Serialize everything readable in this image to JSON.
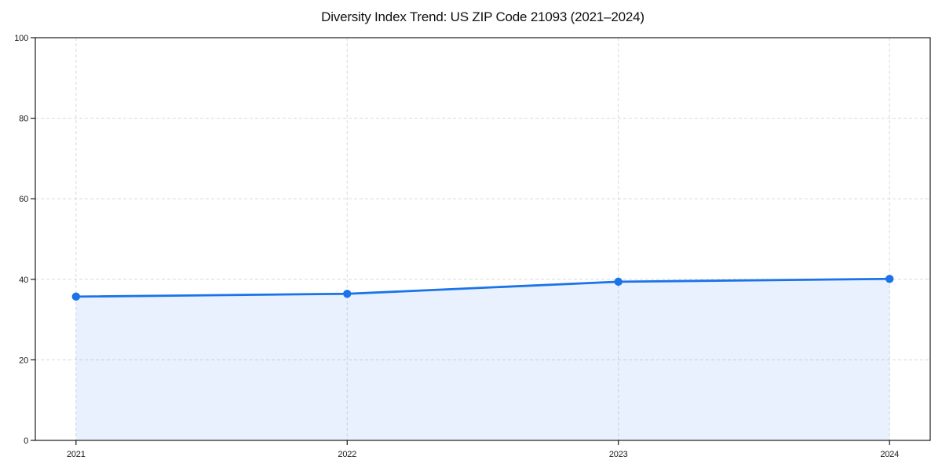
{
  "chart_data": {
    "type": "line",
    "title": "Diversity Index Trend: US ZIP Code 21093 (2021–2024)",
    "x": [
      2021,
      2022,
      2023,
      2024
    ],
    "xtick_labels": [
      "2021",
      "2022",
      "2023",
      "2024"
    ],
    "series": [
      {
        "name": "Diversity Index",
        "values": [
          35.7,
          36.4,
          39.4,
          40.1
        ]
      }
    ],
    "xlabel": "",
    "ylabel": "",
    "xlim": [
      2020.85,
      2024.15
    ],
    "ylim": [
      0,
      100
    ],
    "yticks": [
      0,
      20,
      40,
      60,
      80,
      100
    ],
    "grid": "dashed",
    "legend": "none",
    "area_fill": true,
    "marker": "circle",
    "colors": {
      "line": "#1a73e8",
      "marker": "#1a73e8",
      "area": "#1a73e8",
      "area_opacity": 0.1,
      "grid": "#d9d9d9",
      "spine": "#1a1a1a",
      "text": "#1a1a1a",
      "background": "#ffffff"
    }
  }
}
